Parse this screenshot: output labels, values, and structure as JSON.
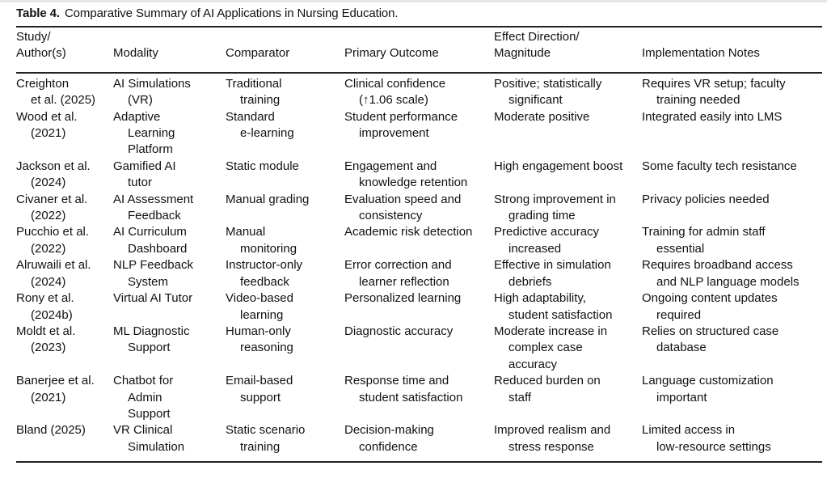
{
  "caption": {
    "label": "Table 4.",
    "title": "Comparative Summary of AI Applications in Nursing Education."
  },
  "headers": [
    "Study/\nAuthor(s)",
    "Modality",
    "Comparator",
    "Primary Outcome",
    "Effect Direction/\nMagnitude",
    "Implementation Notes"
  ],
  "rows": [
    [
      "Creighton\net al. (2025)",
      "AI Simulations\n(VR)",
      "Traditional\ntraining",
      "Clinical confidence\n(↑1.06 scale)",
      "Positive; statistically\nsignificant",
      "Requires VR setup; faculty\ntraining needed"
    ],
    [
      "Wood et al.\n(2021)",
      "Adaptive\nLearning\nPlatform",
      "Standard\ne-learning",
      "Student performance\nimprovement",
      "Moderate positive",
      "Integrated easily into LMS"
    ],
    [
      "Jackson et al.\n(2024)",
      "Gamified AI\ntutor",
      "Static module",
      "Engagement and\nknowledge retention",
      "High engagement boost",
      "Some faculty tech resistance"
    ],
    [
      "Civaner et al.\n(2022)",
      "AI Assessment\nFeedback",
      "Manual grading",
      "Evaluation speed and\nconsistency",
      "Strong improvement in\ngrading time",
      "Privacy policies needed"
    ],
    [
      "Pucchio et al.\n(2022)",
      "AI Curriculum\nDashboard",
      "Manual\nmonitoring",
      "Academic risk detection",
      "Predictive accuracy\nincreased",
      "Training for admin staff\nessential"
    ],
    [
      "Alruwaili et al.\n(2024)",
      "NLP Feedback\nSystem",
      "Instructor-only\nfeedback",
      "Error correction and\nlearner reflection",
      "Effective in simulation\ndebriefs",
      "Requires broadband access\nand NLP language models"
    ],
    [
      "Rony et al.\n(2024b)",
      "Virtual AI Tutor",
      "Video-based\nlearning",
      "Personalized learning",
      "High adaptability,\nstudent satisfaction",
      "Ongoing content updates\nrequired"
    ],
    [
      "Moldt et al.\n(2023)",
      "ML Diagnostic\nSupport",
      "Human-only\nreasoning",
      "Diagnostic accuracy",
      "Moderate increase in\ncomplex case\naccuracy",
      "Relies on structured case\ndatabase"
    ],
    [
      "Banerjee et al.\n(2021)",
      "Chatbot for\nAdmin\nSupport",
      "Email-based\nsupport",
      "Response time and\nstudent satisfaction",
      "Reduced burden on\nstaff",
      "Language customization\nimportant"
    ],
    [
      "Bland (2025)",
      "VR Clinical\nSimulation",
      "Static scenario\ntraining",
      "Decision-making\nconfidence",
      "Improved realism and\nstress response",
      "Limited access in\nlow-resource settings"
    ]
  ]
}
